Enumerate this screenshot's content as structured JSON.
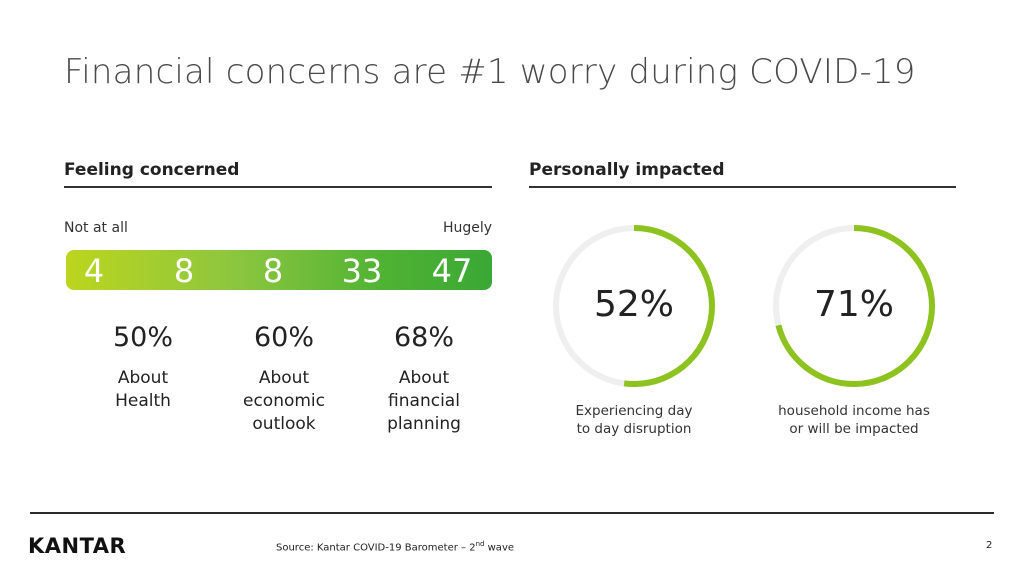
{
  "title": "Financial concerns are #1 worry during COVID-19",
  "feeling_concerned": {
    "heading": "Feeling concerned",
    "scale_left_label": "Not at all",
    "scale_right_label": "Hugely",
    "scale_values": [
      "4",
      "8",
      "8",
      "33",
      "47"
    ],
    "stats": [
      {
        "value": "50%",
        "label": "About\nHealth"
      },
      {
        "value": "60%",
        "label": "About\neconomic\noutlook"
      },
      {
        "value": "68%",
        "label": "About\nfinancial\nplanning"
      }
    ]
  },
  "personally_impacted": {
    "heading": "Personally impacted",
    "donuts": [
      {
        "value_text": "52%",
        "percent": 52,
        "caption": "Experiencing day\nto day disruption"
      },
      {
        "value_text": "71%",
        "percent": 71,
        "caption": "household income has\nor will be impacted"
      }
    ]
  },
  "colors": {
    "accent": "#8dc21f",
    "track": "#efefef"
  },
  "footer": {
    "logo": "KANTAR",
    "source_prefix": "Source: Kantar COVID-19 Barometer – 2",
    "source_sup": "nd",
    "source_suffix": " wave",
    "page_number": "2"
  }
}
